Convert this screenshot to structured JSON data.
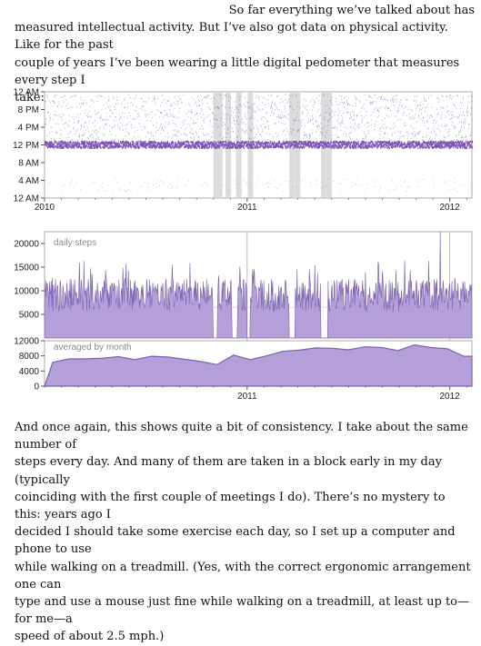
{
  "paragraphs": {
    "intro_lines": [
      "So far everything we’ve talked about has",
      "measured intellectual activity. But I’ve also got data on physical activity. Like for the past",
      "couple of years I’ve been wearing a little digital pedometer that measures every step I",
      "take:"
    ],
    "outro_lines": [
      "And once again, this shows quite a bit of consistency. I take about the same number of",
      "steps every day. And many of them are taken in a block early in my day (typically",
      "coinciding with the first couple of meetings I do). There’s no mystery to this: years ago I",
      "decided I should take some exercise each day, so I set up a computer and phone to use",
      "while walking on a treadmill. (Yes, with the correct ergonomic arrangement one can",
      "type and use a mouse just fine while walking on a treadmill, at least up to—for me—a",
      "speed of about 2.5 mph.)"
    ]
  },
  "colors": {
    "accent": "#7b4fb3",
    "fill": "#b49fd8",
    "stroke": "#7a62b0",
    "axis": "#8a8a8a",
    "gap": "#dcdcdc"
  },
  "chart_data": [
    {
      "type": "scatter",
      "title": "",
      "xlabel": "",
      "ylabel": "",
      "x_ticks": [
        "2010",
        "2011",
        "2012"
      ],
      "y_ticks": [
        "12 AM",
        "8 PM",
        "4 PM",
        "12 PM",
        "8 AM",
        "4 AM",
        "12 AM"
      ],
      "xlim": [
        "2010-01-01",
        "2012-02-10"
      ],
      "ylim": [
        "12 AM",
        "12 AM"
      ],
      "y_axis_reversed": true,
      "note": "each point is a minute with steps recorded; dense band around 12 PM–1 PM; grey columns mark days without data",
      "dense_band_hours": [
        11.5,
        13
      ],
      "missing_data_dates": [
        "2010-11-01",
        "2010-11-08",
        "2010-11-23",
        "2010-12-12",
        "2011-01-02",
        "2011-03-18",
        "2011-03-28",
        "2011-05-14",
        "2011-05-24"
      ]
    },
    {
      "type": "area",
      "title": "daily steps",
      "xlabel": "",
      "ylabel": "",
      "y_ticks": [
        20000,
        15000,
        10000,
        5000
      ],
      "ylim": [
        0,
        22500
      ],
      "x_range": [
        "2010-01-01",
        "2012-02-10"
      ],
      "typical_daily_steps": 9000,
      "peak": {
        "date": "2011-12-15",
        "steps": 23000
      },
      "no_data_periods": [
        [
          "2010-11-01",
          "2010-11-08"
        ],
        [
          "2010-12-05",
          "2010-12-14"
        ],
        [
          "2011-01-01",
          "2011-01-06"
        ],
        [
          "2011-03-18",
          "2011-03-28"
        ],
        [
          "2011-05-14",
          "2011-05-26"
        ]
      ],
      "reference_level": 6500
    },
    {
      "type": "area",
      "title": "averaged by month",
      "xlabel": "",
      "ylabel": "",
      "x_ticks": [
        "2011",
        "2012"
      ],
      "y_ticks": [
        12000,
        8000,
        4000,
        0
      ],
      "ylim": [
        0,
        12000
      ],
      "categories": [
        "2010-01",
        "2010-02",
        "2010-03",
        "2010-04",
        "2010-05",
        "2010-06",
        "2010-07",
        "2010-08",
        "2010-09",
        "2010-10",
        "2010-11",
        "2010-12",
        "2011-01",
        "2011-02",
        "2011-03",
        "2011-04",
        "2011-05",
        "2011-06",
        "2011-07",
        "2011-08",
        "2011-09",
        "2011-10",
        "2011-11",
        "2011-12",
        "2012-01",
        "2012-02"
      ],
      "values": [
        6300,
        7200,
        7200,
        7400,
        7800,
        7000,
        7900,
        7700,
        7100,
        6500,
        5700,
        8200,
        7000,
        8000,
        9200,
        9500,
        10100,
        10000,
        9600,
        10400,
        10200,
        9400,
        10900,
        10200,
        9900,
        7900
      ]
    }
  ]
}
